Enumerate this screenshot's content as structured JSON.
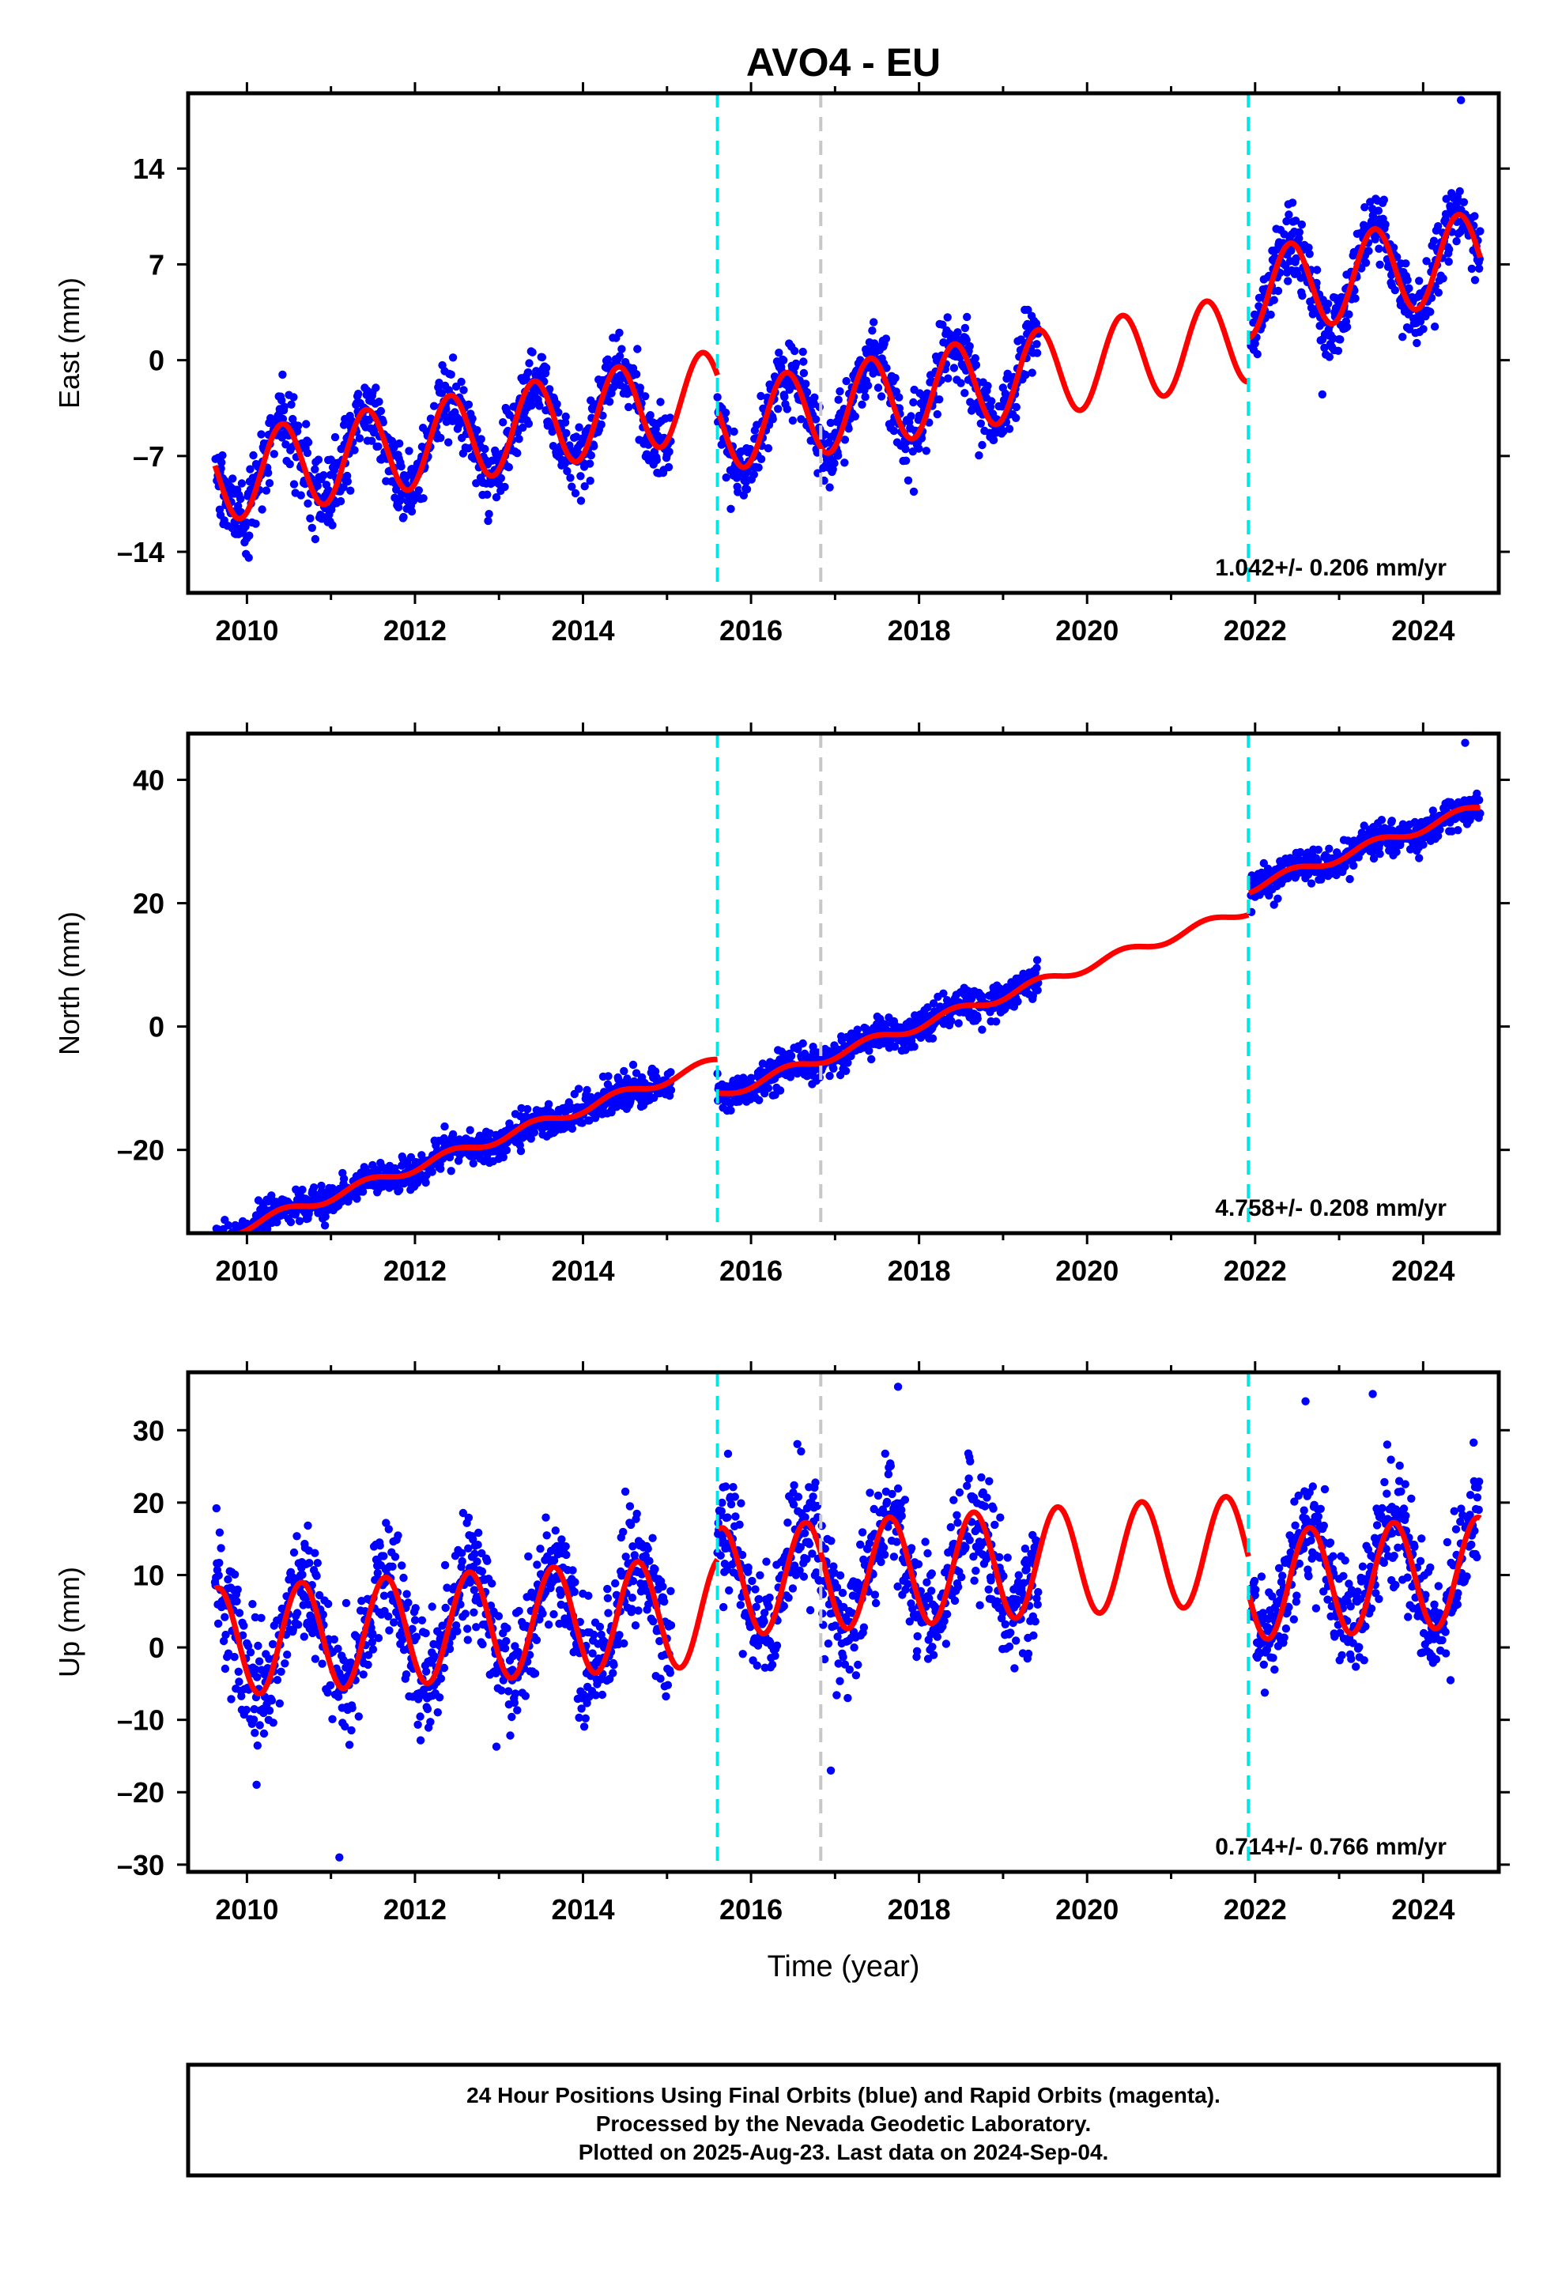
{
  "title": "AVO4 - EU",
  "x_axis_label": "Time (year)",
  "footer": {
    "line1": "24 Hour Positions Using Final Orbits (blue) and Rapid Orbits (magenta).",
    "line2": "Processed by the Nevada Geodetic Laboratory.",
    "line3": "Plotted on 2025-Aug-23. Last data on 2024-Sep-04."
  },
  "colors": {
    "data_points": "#0000ff",
    "model_fit": "#ff0000",
    "step_marker_equipment": "#00e5e5",
    "step_marker_other": "#c8c8c8",
    "frame": "#000000"
  },
  "chart_data": [
    {
      "type": "scatter",
      "component": "East",
      "ylabel": "East (mm)",
      "xlim": [
        2009.3,
        2024.9
      ],
      "ylim": [
        -17,
        19.5
      ],
      "x_ticks": [
        2010,
        2012,
        2014,
        2016,
        2018,
        2020,
        2022,
        2024
      ],
      "y_ticks": [
        14,
        7,
        0,
        -7,
        -14
      ],
      "grid": false,
      "rate_label": "1.042+/- 0.206 mm/yr",
      "step_markers": [
        {
          "x": 2015.6,
          "type": "equipment"
        },
        {
          "x": 2016.83,
          "type": "other"
        },
        {
          "x": 2021.92,
          "type": "equipment"
        }
      ],
      "model": {
        "trend_rate": 1.042,
        "trend_origin": 2017,
        "trend_at_origin": -1.0,
        "annual_amplitude": 3.2,
        "annual_phase_peak": 0.42,
        "steps": [
          {
            "x": 2015.6,
            "offset": -2.5
          },
          {
            "x": 2021.92,
            "offset": 3.2
          }
        ]
      },
      "data_segments": [
        [
          2009.62,
          2015.05
        ],
        [
          2015.6,
          2019.42
        ],
        [
          2021.95,
          2024.68
        ]
      ],
      "outliers": [
        {
          "x": 2022.8,
          "y": -2.5
        },
        {
          "x": 2024.45,
          "y": 19
        }
      ],
      "noise_sd": 1.3
    },
    {
      "type": "scatter",
      "component": "North",
      "ylabel": "North (mm)",
      "xlim": [
        2009.3,
        2024.9
      ],
      "ylim": [
        -33.5,
        47.5
      ],
      "x_ticks": [
        2010,
        2012,
        2014,
        2016,
        2018,
        2020,
        2022,
        2024
      ],
      "y_ticks": [
        40,
        20,
        0,
        -20
      ],
      "grid": false,
      "rate_label": "4.758+/- 0.208 mm/yr",
      "step_markers": [
        {
          "x": 2015.6,
          "type": "equipment"
        },
        {
          "x": 2016.83,
          "type": "other"
        },
        {
          "x": 2021.92,
          "type": "equipment"
        }
      ],
      "model": {
        "trend_rate": 4.758,
        "trend_origin": 2017,
        "trend_at_origin": 1.0,
        "annual_amplitude": 0.8,
        "annual_phase_peak": 0.42,
        "steps": [
          {
            "x": 2015.6,
            "offset": -5.5
          },
          {
            "x": 2021.92,
            "offset": 3.5
          }
        ]
      },
      "data_segments": [
        [
          2009.62,
          2015.05
        ],
        [
          2015.6,
          2019.42
        ],
        [
          2021.95,
          2024.68
        ]
      ],
      "outliers": [
        {
          "x": 2018.75,
          "y": -0.5
        },
        {
          "x": 2024.5,
          "y": 46
        }
      ],
      "noise_sd": 1.3
    },
    {
      "type": "scatter",
      "component": "Up",
      "ylabel": "Up (mm)",
      "xlim": [
        2009.3,
        2024.9
      ],
      "ylim": [
        -31,
        38
      ],
      "x_ticks": [
        2010,
        2012,
        2014,
        2016,
        2018,
        2020,
        2022,
        2024
      ],
      "y_ticks": [
        30,
        20,
        10,
        0,
        -10,
        -20,
        -30
      ],
      "grid": false,
      "rate_label": "0.714+/- 0.766 mm/yr",
      "step_markers": [
        {
          "x": 2015.6,
          "type": "equipment"
        },
        {
          "x": 2016.83,
          "type": "other"
        },
        {
          "x": 2021.92,
          "type": "equipment"
        }
      ],
      "model": {
        "trend_rate": 0.714,
        "trend_origin": 2017,
        "trend_at_origin": 6.0,
        "annual_amplitude": 7.5,
        "annual_phase_peak": 0.65,
        "steps": [
          {
            "x": 2015.6,
            "offset": 4.0
          },
          {
            "x": 2021.92,
            "offset": -5.0
          }
        ]
      },
      "data_segments": [
        [
          2009.62,
          2015.05
        ],
        [
          2015.6,
          2019.42
        ],
        [
          2021.95,
          2024.68
        ]
      ],
      "outliers": [
        {
          "x": 2017.75,
          "y": 36
        },
        {
          "x": 2022.6,
          "y": 34
        },
        {
          "x": 2023.4,
          "y": 35
        },
        {
          "x": 2011.1,
          "y": -29
        },
        {
          "x": 2016.95,
          "y": -17
        }
      ],
      "noise_sd": 4.2
    }
  ]
}
